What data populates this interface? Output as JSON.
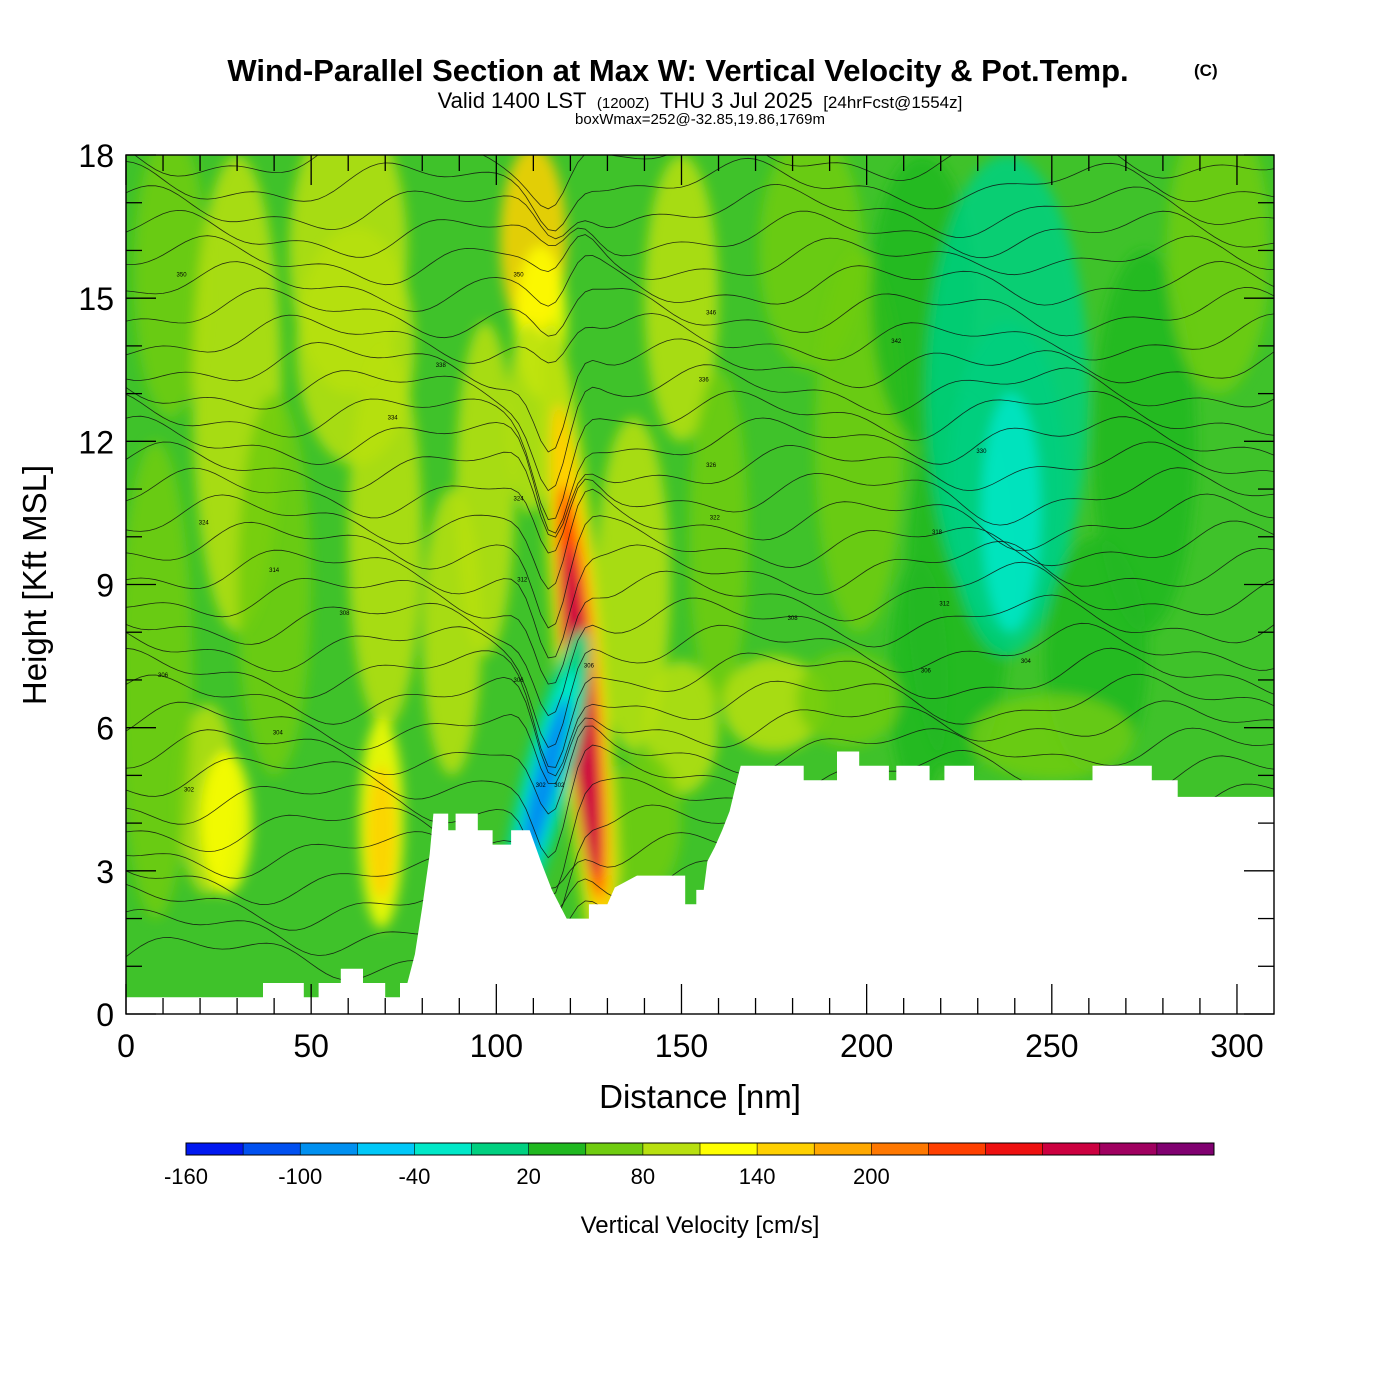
{
  "header": {
    "title": "Wind-Parallel Section at Max W: Vertical Velocity & Pot.Temp.",
    "copyright": "(C)",
    "valid_prefix": "Valid 1400 LST",
    "valid_z": "(1200Z)",
    "valid_date": "THU 3 Jul 2025",
    "forecast": "[24hrFcst@1554z]",
    "boxwmax": "boxWmax=252@-32.85,19.86,1769m"
  },
  "chart_data": {
    "type": "heatmap",
    "xlabel": "Distance [nm]",
    "ylabel": "Height [Kft MSL]",
    "xlim": [
      0,
      310
    ],
    "ylim": [
      0,
      18
    ],
    "x_ticks": [
      0,
      50,
      100,
      150,
      200,
      250,
      300
    ],
    "x_tick_labels": [
      "0",
      "50",
      "100",
      "150",
      "200",
      "250",
      "300"
    ],
    "y_ticks": [
      0,
      3,
      6,
      9,
      12,
      15,
      18
    ],
    "y_tick_labels": [
      "0",
      "3",
      "6",
      "9",
      "12",
      "15",
      "18"
    ],
    "grid": false,
    "colorbar": {
      "label": "Vertical Velocity [cm/s]",
      "levels": [
        -160,
        -130,
        -100,
        -70,
        -40,
        -10,
        20,
        50,
        80,
        110,
        140,
        170,
        200,
        230,
        260
      ],
      "tick_values": [
        -160,
        -100,
        -40,
        20,
        80,
        140,
        200
      ],
      "tick_labels": [
        "-160",
        "-100",
        "-40",
        "20",
        "80",
        "140",
        "200"
      ],
      "colors": [
        "#0018f0",
        "#0050f0",
        "#0090f0",
        "#00c8f8",
        "#00e8c8",
        "#00d080",
        "#20b820",
        "#70cc10",
        "#b8e010",
        "#ffff00",
        "#ffd000",
        "#ffa800",
        "#ff7800",
        "#ff4000",
        "#ee1010",
        "#cc0040",
        "#a00060",
        "#800070"
      ]
    },
    "terrain_kft": [
      [
        0,
        0.35
      ],
      [
        37,
        0.35
      ],
      [
        37,
        0.65
      ],
      [
        48,
        0.65
      ],
      [
        48,
        0.35
      ],
      [
        52,
        0.35
      ],
      [
        52,
        0.65
      ],
      [
        58,
        0.65
      ],
      [
        58,
        0.95
      ],
      [
        64,
        0.95
      ],
      [
        64,
        0.65
      ],
      [
        70,
        0.65
      ],
      [
        70,
        0.35
      ],
      [
        74,
        0.35
      ],
      [
        74,
        0.65
      ],
      [
        76,
        0.65
      ],
      [
        78,
        1.25
      ],
      [
        80,
        2.25
      ],
      [
        82,
        3.35
      ],
      [
        83,
        4.2
      ],
      [
        87,
        4.2
      ],
      [
        87,
        3.85
      ],
      [
        89,
        3.85
      ],
      [
        89,
        4.2
      ],
      [
        95,
        4.2
      ],
      [
        95,
        3.85
      ],
      [
        99,
        3.85
      ],
      [
        99,
        3.55
      ],
      [
        104,
        3.55
      ],
      [
        104,
        3.85
      ],
      [
        109,
        3.85
      ],
      [
        112,
        3.2
      ],
      [
        115,
        2.6
      ],
      [
        117,
        2.3
      ],
      [
        119,
        2.0
      ],
      [
        125,
        2.0
      ],
      [
        125,
        2.3
      ],
      [
        130,
        2.3
      ],
      [
        132,
        2.65
      ],
      [
        138,
        2.9
      ],
      [
        151,
        2.9
      ],
      [
        151,
        2.3
      ],
      [
        154,
        2.3
      ],
      [
        154,
        2.6
      ],
      [
        156,
        2.6
      ],
      [
        157,
        3.2
      ],
      [
        159,
        3.5
      ],
      [
        161,
        3.85
      ],
      [
        163,
        4.25
      ],
      [
        165,
        4.9
      ],
      [
        166,
        5.2
      ],
      [
        183,
        5.2
      ],
      [
        183,
        4.9
      ],
      [
        192,
        4.9
      ],
      [
        192,
        5.5
      ],
      [
        198,
        5.5
      ],
      [
        198,
        5.2
      ],
      [
        206,
        5.2
      ],
      [
        206,
        4.9
      ],
      [
        208,
        4.9
      ],
      [
        208,
        5.2
      ],
      [
        217,
        5.2
      ],
      [
        217,
        4.9
      ],
      [
        221,
        4.9
      ],
      [
        221,
        5.2
      ],
      [
        229,
        5.2
      ],
      [
        229,
        4.9
      ],
      [
        261,
        4.9
      ],
      [
        261,
        5.2
      ],
      [
        277,
        5.2
      ],
      [
        277,
        4.9
      ],
      [
        284,
        4.9
      ],
      [
        284,
        4.55
      ],
      [
        310,
        4.55
      ]
    ],
    "wmax": {
      "value": 252,
      "lat": -32.85,
      "lon": 19.86,
      "height_m": 1769
    },
    "updraft": {
      "x_nm": 123,
      "height_kft": [
        2.8,
        11.5
      ],
      "peak_cms": 252
    },
    "downdraft": {
      "x_nm": 113,
      "height_kft": [
        2.5,
        9.5
      ],
      "peak_cms": -160
    },
    "theta_contour_labels": [
      {
        "x": 15,
        "y": 15.5,
        "label": "350"
      },
      {
        "x": 106,
        "y": 15.5,
        "label": "350"
      },
      {
        "x": 158,
        "y": 14.7,
        "label": "346"
      },
      {
        "x": 208,
        "y": 14.1,
        "label": "342"
      },
      {
        "x": 85,
        "y": 13.6,
        "label": "338"
      },
      {
        "x": 156,
        "y": 13.3,
        "label": "336"
      },
      {
        "x": 72,
        "y": 12.5,
        "label": "334"
      },
      {
        "x": 231,
        "y": 11.8,
        "label": "330"
      },
      {
        "x": 158,
        "y": 11.5,
        "label": "326"
      },
      {
        "x": 106,
        "y": 10.8,
        "label": "324"
      },
      {
        "x": 21,
        "y": 10.3,
        "label": "324"
      },
      {
        "x": 159,
        "y": 10.4,
        "label": "322"
      },
      {
        "x": 219,
        "y": 10.1,
        "label": "318"
      },
      {
        "x": 40,
        "y": 9.3,
        "label": "314"
      },
      {
        "x": 107,
        "y": 9.1,
        "label": "312"
      },
      {
        "x": 221,
        "y": 8.6,
        "label": "312"
      },
      {
        "x": 59,
        "y": 8.4,
        "label": "308"
      },
      {
        "x": 180,
        "y": 8.3,
        "label": "308"
      },
      {
        "x": 10,
        "y": 7.1,
        "label": "306"
      },
      {
        "x": 106,
        "y": 7.0,
        "label": "306"
      },
      {
        "x": 125,
        "y": 7.3,
        "label": "306"
      },
      {
        "x": 216,
        "y": 7.2,
        "label": "306"
      },
      {
        "x": 243,
        "y": 7.4,
        "label": "304"
      },
      {
        "x": 41,
        "y": 5.9,
        "label": "304"
      },
      {
        "x": 112,
        "y": 4.8,
        "label": "302"
      },
      {
        "x": 117,
        "y": 4.8,
        "label": "302"
      },
      {
        "x": 17,
        "y": 4.7,
        "label": "302"
      }
    ]
  }
}
